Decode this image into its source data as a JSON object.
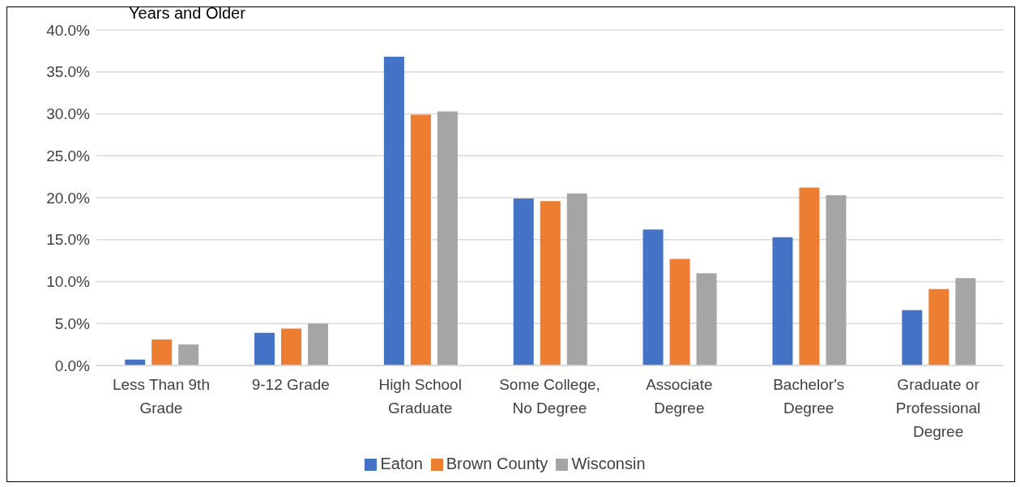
{
  "chart_data": {
    "type": "bar",
    "title": "Years and Older",
    "categories": [
      "Less Than 9th Grade",
      "9-12 Grade",
      "High School Graduate",
      "Some College, No Degree",
      "Associate Degree",
      "Bachelor's Degree",
      "Graduate or Professional Degree"
    ],
    "series": [
      {
        "name": "Eaton",
        "color": "#4472c4",
        "values": [
          0.7,
          3.9,
          36.8,
          19.9,
          16.2,
          15.3,
          6.6
        ]
      },
      {
        "name": "Brown County",
        "color": "#ed7d31",
        "values": [
          3.1,
          4.4,
          29.9,
          19.6,
          12.7,
          21.2,
          9.1
        ]
      },
      {
        "name": "Wisconsin",
        "color": "#a5a5a5",
        "values": [
          2.5,
          5.0,
          30.3,
          20.5,
          11.0,
          20.3,
          10.4
        ]
      }
    ],
    "ylim": [
      0,
      40
    ],
    "yticks": [
      {
        "value": 0,
        "label": "0.0%"
      },
      {
        "value": 5,
        "label": "5.0%"
      },
      {
        "value": 10,
        "label": "10.0%"
      },
      {
        "value": 15,
        "label": "15.0%"
      },
      {
        "value": 20,
        "label": "20.0%"
      },
      {
        "value": 25,
        "label": "25.0%"
      },
      {
        "value": 30,
        "label": "30.0%"
      },
      {
        "value": 35,
        "label": "35.0%"
      },
      {
        "value": 40,
        "label": "40.0%"
      }
    ],
    "grid": "y",
    "legend": "bottom"
  }
}
